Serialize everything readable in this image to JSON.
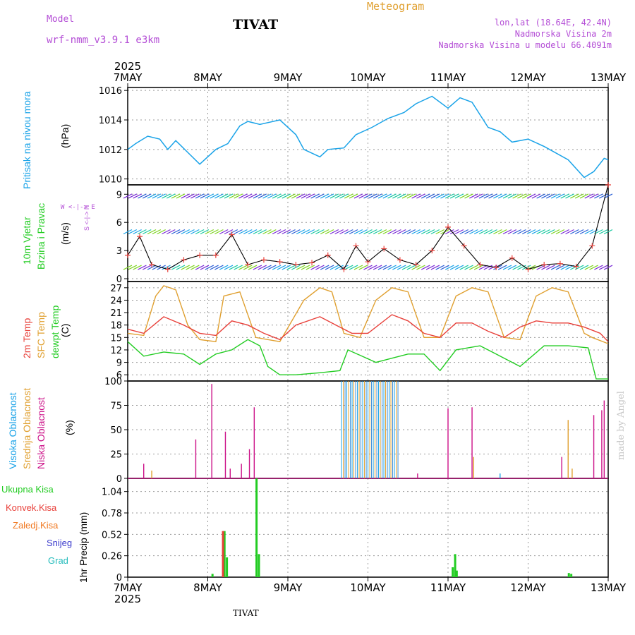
{
  "header": {
    "model_label": "Model",
    "model_name": "wrf-nmm_v3.9.1 e3km",
    "station": "TIVAT",
    "title": "Meteogram",
    "lonlat": "lon,lat (18.64E, 42.4N)",
    "elevation": "Nadmorska Visina 2m",
    "model_elevation": "Nadmorska Visina u modelu 66.4091m",
    "credit": "made by Angel",
    "footer_station": "TIVAT"
  },
  "colors": {
    "pressure": "#1aa3e8",
    "temp2m": "#e8403a",
    "sfctemp": "#e0a030",
    "dewpt": "#22cc22",
    "high_cloud": "#1aa3e8",
    "mid_cloud": "#e0a030",
    "low_cloud": "#cc1188",
    "header_purple": "#b44ed6",
    "header_orange": "#e0a030"
  },
  "time_axis": {
    "year": "2025",
    "ticks": [
      "7MAY",
      "8MAY",
      "9MAY",
      "10MAY",
      "11MAY",
      "12MAY",
      "13MAY"
    ]
  },
  "panel_labels": {
    "pressure": "Pritisak na nivou mora",
    "pressure_unit": "(hPa)",
    "wind_a": "10m Vjetar",
    "wind_b": "Brzina i Pravac",
    "wind_unit": "(m/s)",
    "compass": "W <-|-> E",
    "compass_vert": "S <-|-> N",
    "temp2m": "2m Temp",
    "sfctemp": "SFC Temp",
    "dewpt": "dewpt Temp",
    "temp_unit": "(C)",
    "high_cloud": "Visoka Oblacnost",
    "mid_cloud": "Srednja Oblacnost",
    "low_cloud": "Niska Oblacnost",
    "cloud_unit": "(%)",
    "precip_total": "Ukupna Kisa",
    "precip_conv": "Konvek.Kisa",
    "precip_frz": "Zaledj.Kisa",
    "precip_snow": "Snijeg",
    "precip_hail": "Grad",
    "precip_unit": "1hr Precip (mm)"
  },
  "chart_data": [
    {
      "type": "line",
      "name": "pressure",
      "ylim": [
        1009.6,
        1016.2
      ],
      "yticks": [
        1010,
        1012,
        1014,
        1016
      ],
      "x_days": [
        0,
        0.1,
        0.25,
        0.4,
        0.5,
        0.6,
        0.75,
        0.9,
        1.1,
        1.25,
        1.4,
        1.5,
        1.65,
        1.9,
        2.1,
        2.2,
        2.4,
        2.5,
        2.7,
        2.85,
        3.05,
        3.25,
        3.45,
        3.6,
        3.8,
        4.0,
        4.15,
        4.3,
        4.5,
        4.65,
        4.8,
        5.0,
        5.2,
        5.5,
        5.7,
        5.82,
        5.95,
        6.0
      ],
      "values": [
        1012.0,
        1012.4,
        1012.9,
        1012.7,
        1012.0,
        1012.6,
        1011.8,
        1011.0,
        1012.0,
        1012.4,
        1013.6,
        1013.9,
        1013.7,
        1014.0,
        1013.0,
        1012.0,
        1011.5,
        1012.0,
        1012.1,
        1013.0,
        1013.5,
        1014.1,
        1014.5,
        1015.1,
        1015.6,
        1014.8,
        1015.5,
        1015.2,
        1013.5,
        1013.2,
        1012.5,
        1012.7,
        1012.2,
        1011.3,
        1010.1,
        1010.5,
        1011.4,
        1011.3
      ]
    },
    {
      "type": "line",
      "name": "wind_speed",
      "ylim": [
        -0.3,
        10
      ],
      "yticks": [
        0,
        3,
        6,
        9
      ],
      "series": [
        {
          "name": "speed",
          "x_days": [
            0,
            0.15,
            0.3,
            0.5,
            0.7,
            0.9,
            1.1,
            1.3,
            1.5,
            1.7,
            1.9,
            2.1,
            2.3,
            2.5,
            2.7,
            2.85,
            3.0,
            3.2,
            3.4,
            3.6,
            3.8,
            4.0,
            4.2,
            4.4,
            4.6,
            4.8,
            5.0,
            5.2,
            5.4,
            5.6,
            5.8,
            6.0
          ],
          "values": [
            2.5,
            4.5,
            1.5,
            1.0,
            2.0,
            2.5,
            2.5,
            4.7,
            1.5,
            2.0,
            1.8,
            1.5,
            1.7,
            2.5,
            1.0,
            3.5,
            1.8,
            3.2,
            2.0,
            1.5,
            3.0,
            5.5,
            3.5,
            1.5,
            1.2,
            2.2,
            1.0,
            1.5,
            1.6,
            1.3,
            3.5,
            10.0
          ]
        }
      ]
    },
    {
      "type": "line",
      "name": "temperature",
      "ylim": [
        4.5,
        28.5
      ],
      "yticks": [
        6,
        9,
        12,
        15,
        18,
        21,
        24,
        27
      ],
      "series": [
        {
          "name": "sfc_temp",
          "x_days": [
            0,
            0.2,
            0.35,
            0.45,
            0.6,
            0.75,
            0.9,
            1.1,
            1.2,
            1.4,
            1.6,
            1.75,
            1.9,
            2.2,
            2.4,
            2.55,
            2.7,
            2.9,
            3.1,
            3.3,
            3.5,
            3.7,
            3.9,
            4.1,
            4.3,
            4.5,
            4.7,
            4.9,
            5.1,
            5.3,
            5.5,
            5.7,
            5.8,
            6.0
          ],
          "values": [
            16,
            15.5,
            25,
            27.5,
            26.5,
            18,
            14.5,
            14,
            25,
            26,
            15,
            14.5,
            14,
            24,
            27,
            26,
            16,
            15,
            24,
            27,
            26,
            15,
            15,
            25,
            27,
            26,
            15,
            14.5,
            25,
            27,
            26,
            16,
            15,
            13.5
          ]
        },
        {
          "name": "temp_2m",
          "x_days": [
            0,
            0.2,
            0.45,
            0.7,
            0.9,
            1.1,
            1.3,
            1.5,
            1.7,
            1.9,
            2.1,
            2.4,
            2.6,
            2.8,
            3.0,
            3.3,
            3.5,
            3.7,
            3.9,
            4.1,
            4.3,
            4.5,
            4.7,
            4.9,
            5.1,
            5.3,
            5.5,
            5.7,
            5.9,
            6.0
          ],
          "values": [
            17,
            16,
            20,
            18,
            16,
            15.5,
            19,
            18,
            16,
            14.5,
            18,
            20,
            18,
            16,
            16,
            20.5,
            19,
            16,
            15,
            18.5,
            18.5,
            16.5,
            15,
            17.5,
            19,
            18.5,
            18.5,
            17.5,
            16,
            14
          ]
        },
        {
          "name": "dewpt",
          "x_days": [
            0,
            0.2,
            0.45,
            0.7,
            0.9,
            1.1,
            1.3,
            1.5,
            1.65,
            1.75,
            1.9,
            2.1,
            2.4,
            2.65,
            2.75,
            3.1,
            3.3,
            3.5,
            3.7,
            3.9,
            4.1,
            4.4,
            4.6,
            4.9,
            5.2,
            5.5,
            5.75,
            5.85,
            6.0
          ],
          "values": [
            14,
            10.5,
            11.5,
            11,
            8.5,
            11,
            12,
            14.5,
            13,
            8,
            6,
            6,
            6.5,
            7,
            12,
            9,
            10,
            11,
            11,
            7,
            12,
            13,
            11,
            8,
            13,
            13,
            12.5,
            5,
            5
          ]
        }
      ]
    },
    {
      "type": "bar",
      "name": "cloud_cover",
      "ylim": [
        0,
        100
      ],
      "yticks": [
        0,
        25,
        50,
        75,
        100
      ],
      "series": [
        {
          "name": "low",
          "x_days": [
            0.2,
            0.85,
            1.05,
            1.22,
            1.28,
            1.42,
            1.52,
            1.58,
            3.62,
            4.0,
            4.3,
            5.42,
            5.82,
            5.92,
            5.95
          ],
          "values": [
            15,
            40,
            97,
            48,
            10,
            15,
            30,
            73,
            5,
            72,
            73,
            22,
            65,
            70,
            80
          ]
        },
        {
          "name": "mid",
          "x_days": [
            0.3,
            4.32,
            5.5,
            5.55
          ],
          "values": [
            8,
            22,
            60,
            10
          ]
        },
        {
          "name": "high",
          "x_days": [
            4.65
          ],
          "values": [
            5
          ]
        },
        {
          "name": "overcast_block",
          "x_days_start": 2.67,
          "x_days_end": 3.38,
          "values": [
            100
          ]
        }
      ]
    },
    {
      "type": "bar",
      "name": "precip_1hr",
      "ylim": [
        0,
        1.2
      ],
      "yticks": [
        0,
        0.26,
        0.52,
        0.78,
        1.04
      ],
      "series": [
        {
          "name": "total",
          "x_days": [
            1.05,
            1.2,
            1.23,
            1.6,
            1.63,
            4.05,
            4.08,
            4.1,
            5.5,
            5.53
          ],
          "values": [
            0.04,
            0.56,
            0.24,
            1.2,
            0.28,
            0.12,
            0.28,
            0.08,
            0.05,
            0.04
          ]
        },
        {
          "name": "convective",
          "x_days": [
            1.19
          ],
          "values": [
            0.56
          ]
        }
      ]
    }
  ]
}
